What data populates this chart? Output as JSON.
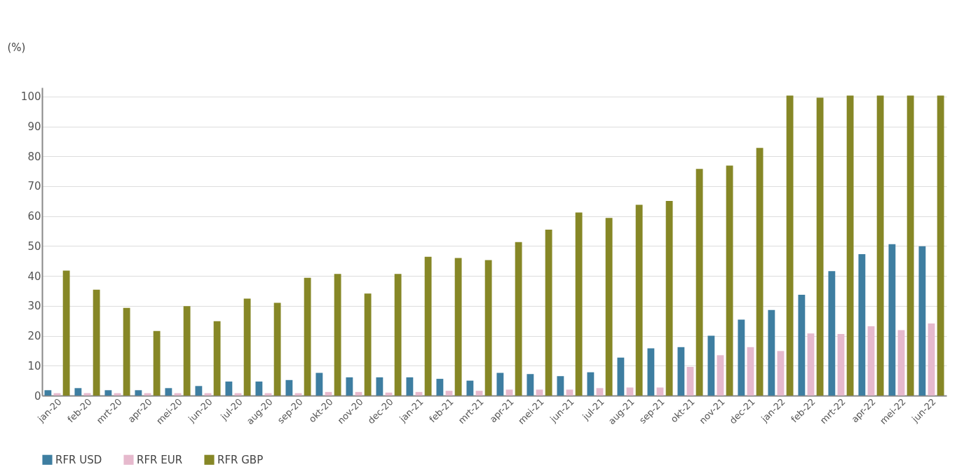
{
  "chart_data": {
    "type": "bar",
    "ylabel": "(%)",
    "categories": [
      "jan-20",
      "feb-20",
      "mrt-20",
      "apr-20",
      "mei-20",
      "jun-20",
      "jul-20",
      "aug-20",
      "sep-20",
      "okt-20",
      "nov-20",
      "dec-20",
      "jan-21",
      "feb-21",
      "mrt-21",
      "apr-21",
      "mei-21",
      "jun-21",
      "jul-21",
      "aug-21",
      "sep-21",
      "okt-21",
      "nov-21",
      "dec-21",
      "jan-22",
      "feb-22",
      "mrt-22",
      "apr-22",
      "mei-22",
      "jun-22"
    ],
    "series": [
      {
        "name": "RFR USD",
        "color": "#3e7ea1",
        "values": [
          1.8,
          2.5,
          1.8,
          1.8,
          2.5,
          3.2,
          4.7,
          4.7,
          5.2,
          7.6,
          6.1,
          6.1,
          6.1,
          5.6,
          5.0,
          7.6,
          7.2,
          6.5,
          7.8,
          12.7,
          15.8,
          16.2,
          20.0,
          25.4,
          28.6,
          33.7,
          41.6,
          47.3,
          50.6,
          49.9
        ]
      },
      {
        "name": "RFR EUR",
        "color": "#e6b9cd",
        "values": [
          0.8,
          0.8,
          0.8,
          0.8,
          0.8,
          0.8,
          0.8,
          0.8,
          0.8,
          1.2,
          1.2,
          1.0,
          1.2,
          1.6,
          1.6,
          2.0,
          2.0,
          2.0,
          2.5,
          2.7,
          2.7,
          9.6,
          13.5,
          16.2,
          14.9,
          20.8,
          20.6,
          23.2,
          21.9,
          24.1
        ]
      },
      {
        "name": "RFR GBP",
        "color": "#868726",
        "values": [
          41.8,
          35.4,
          29.3,
          21.6,
          29.9,
          24.9,
          32.4,
          31.0,
          39.4,
          40.7,
          34.1,
          40.7,
          46.4,
          46.0,
          45.3,
          51.3,
          55.5,
          61.2,
          59.4,
          63.8,
          65.1,
          75.8,
          76.9,
          82.8,
          100.3,
          99.6,
          100.3,
          100.3,
          100.3,
          100.3
        ]
      }
    ],
    "ylim": [
      0,
      103
    ],
    "yticks": [
      0,
      10,
      20,
      30,
      40,
      50,
      60,
      70,
      80,
      90,
      100
    ],
    "grid": "y",
    "legend": "bottom"
  }
}
